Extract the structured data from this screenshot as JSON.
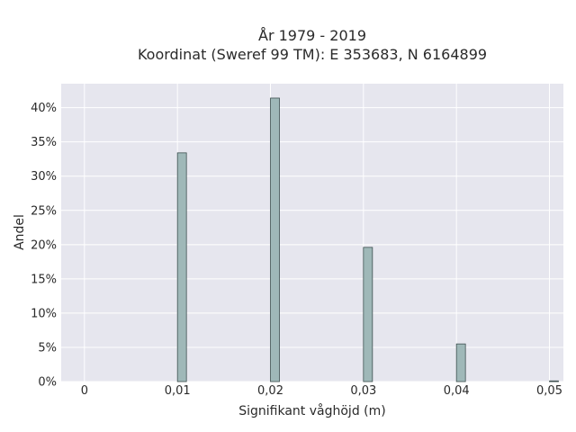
{
  "chart_data": {
    "type": "bar",
    "title": "År 1979 - 2019",
    "subtitle": "Koordinat (Sweref 99 TM): E 353683, N 6164899",
    "xlabel": "Signifikant våghöjd (m)",
    "ylabel": "Andel",
    "x": [
      0.01,
      0.02,
      0.03,
      0.04,
      0.05
    ],
    "values": [
      0.334,
      0.414,
      0.196,
      0.055,
      0.001
    ],
    "xlim": [
      -0.0025,
      0.0515
    ],
    "ylim": [
      0,
      0.435
    ],
    "x_ticks": [
      0,
      0.01,
      0.02,
      0.03,
      0.04,
      0.05
    ],
    "x_tick_labels": [
      "0",
      "0,01",
      "0,02",
      "0,03",
      "0,04",
      "0,05"
    ],
    "y_ticks": [
      0,
      0.05,
      0.1,
      0.15,
      0.2,
      0.25,
      0.3,
      0.35,
      0.4
    ],
    "y_tick_labels": [
      "0%",
      "5%",
      "10%",
      "15%",
      "20%",
      "25%",
      "30%",
      "35%",
      "40%"
    ],
    "grid": true,
    "colors": {
      "bar_fill": "#9fb8b8",
      "bar_edge": "#3d4f4f",
      "plot_bg": "#e6e6ee",
      "grid": "#ffffff"
    }
  }
}
